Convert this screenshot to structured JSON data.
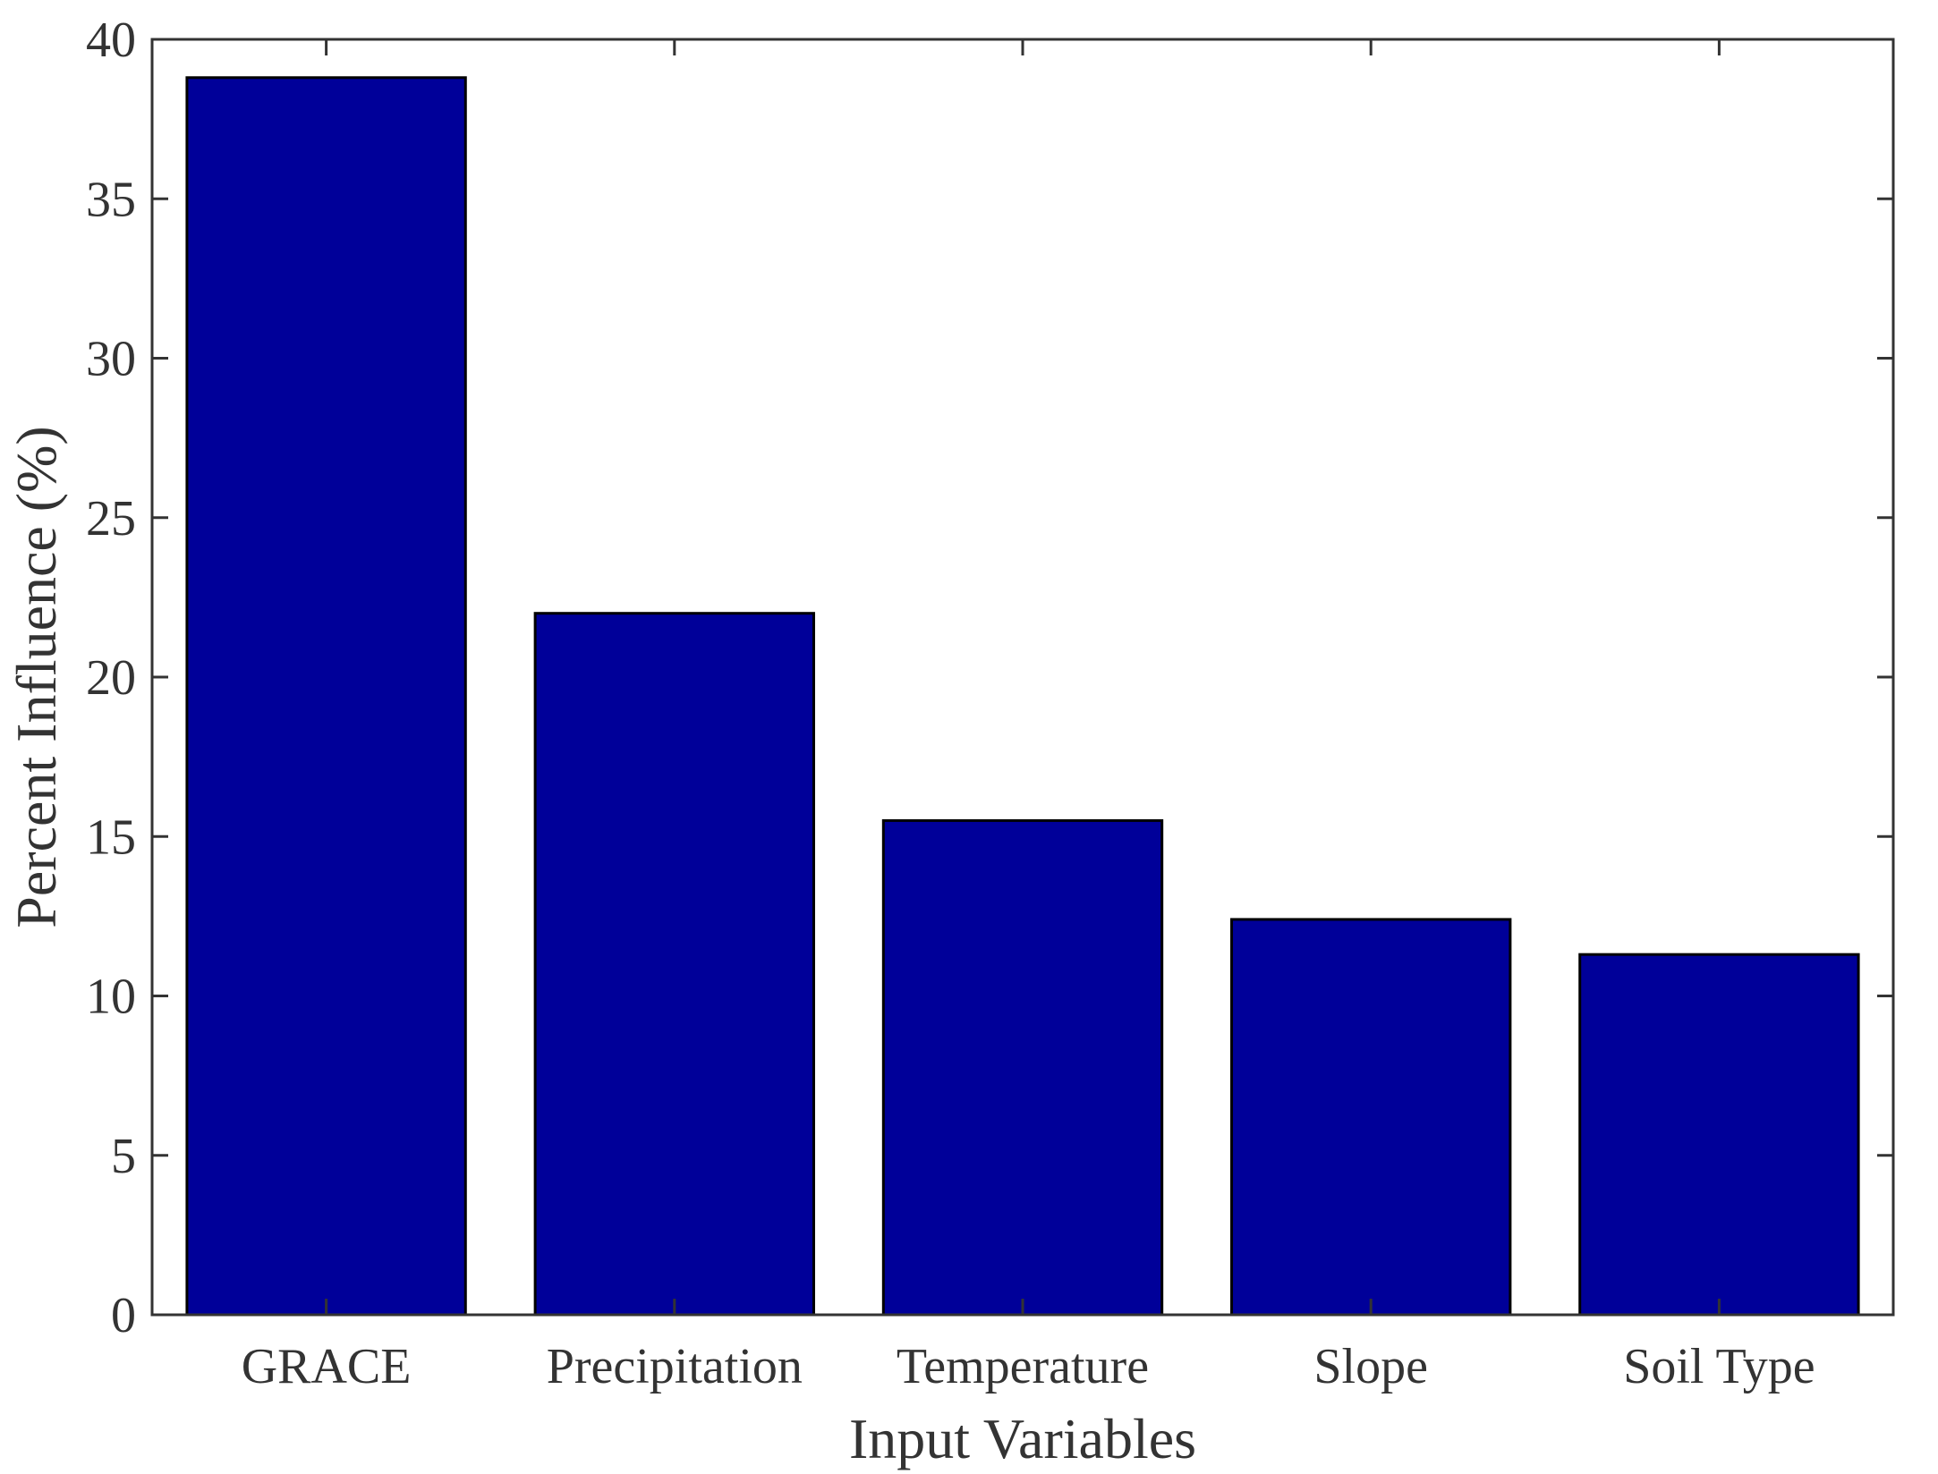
{
  "chart_data": {
    "type": "bar",
    "categories": [
      "GRACE",
      "Precipitation",
      "Temperature",
      "Slope",
      "Soil Type"
    ],
    "values": [
      38.8,
      22.0,
      15.5,
      12.4,
      11.3
    ],
    "title": "",
    "xlabel": "Input Variables",
    "ylabel": "Percent Influence (%)",
    "ylim": [
      0,
      40
    ],
    "yticks": [
      0,
      5,
      10,
      15,
      20,
      25,
      30,
      35,
      40
    ],
    "grid": false,
    "bar_color": "#000099",
    "edge_color": "#000000",
    "axis_color": "#333333"
  }
}
